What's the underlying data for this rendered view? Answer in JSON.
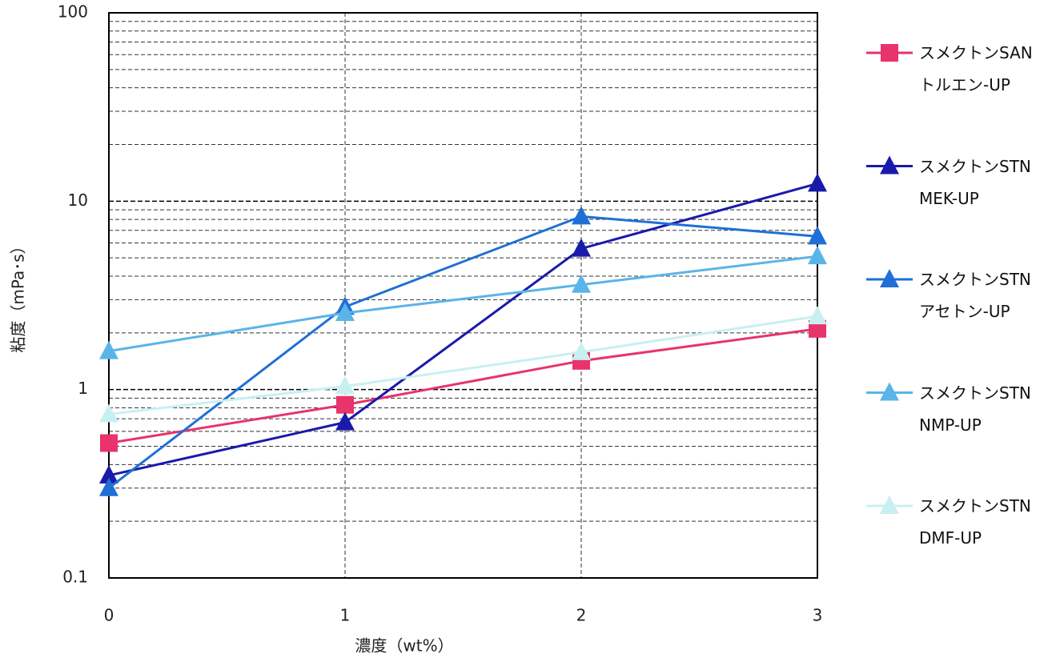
{
  "chart_data": {
    "type": "line",
    "x_label": "濃度（wt%）",
    "y_label": "粘度（mPa･s）",
    "x": [
      0,
      1,
      2,
      3
    ],
    "xlim": [
      0,
      3
    ],
    "xticks": [
      0,
      1,
      2,
      3
    ],
    "ylim": [
      0.1,
      100
    ],
    "yticks": [
      0.1,
      1,
      10,
      100
    ],
    "log_y": true,
    "grid": true,
    "legend": "right",
    "series": [
      {
        "name": "スメクトンSAN\nトルエン-UP",
        "color": "#e8336d",
        "marker": "square",
        "values": [
          0.52,
          0.83,
          1.42,
          2.1
        ]
      },
      {
        "name": "スメクトンSTN\nMEK-UP",
        "color": "#1a1aaa",
        "marker": "triangle",
        "values": [
          0.35,
          0.67,
          5.6,
          12.4
        ]
      },
      {
        "name": "スメクトンSTN\nアセトン-UP",
        "color": "#1f6fd6",
        "marker": "triangle",
        "values": [
          0.3,
          2.75,
          8.3,
          6.5
        ]
      },
      {
        "name": "スメクトンSTN\nNMP-UP",
        "color": "#5ab4e8",
        "marker": "triangle",
        "values": [
          1.6,
          2.55,
          3.6,
          5.1
        ]
      },
      {
        "name": "スメクトンSTN\nDMF-UP",
        "color": "#c8f0f0",
        "marker": "triangle",
        "values": [
          0.74,
          1.04,
          1.58,
          2.45
        ]
      }
    ]
  }
}
